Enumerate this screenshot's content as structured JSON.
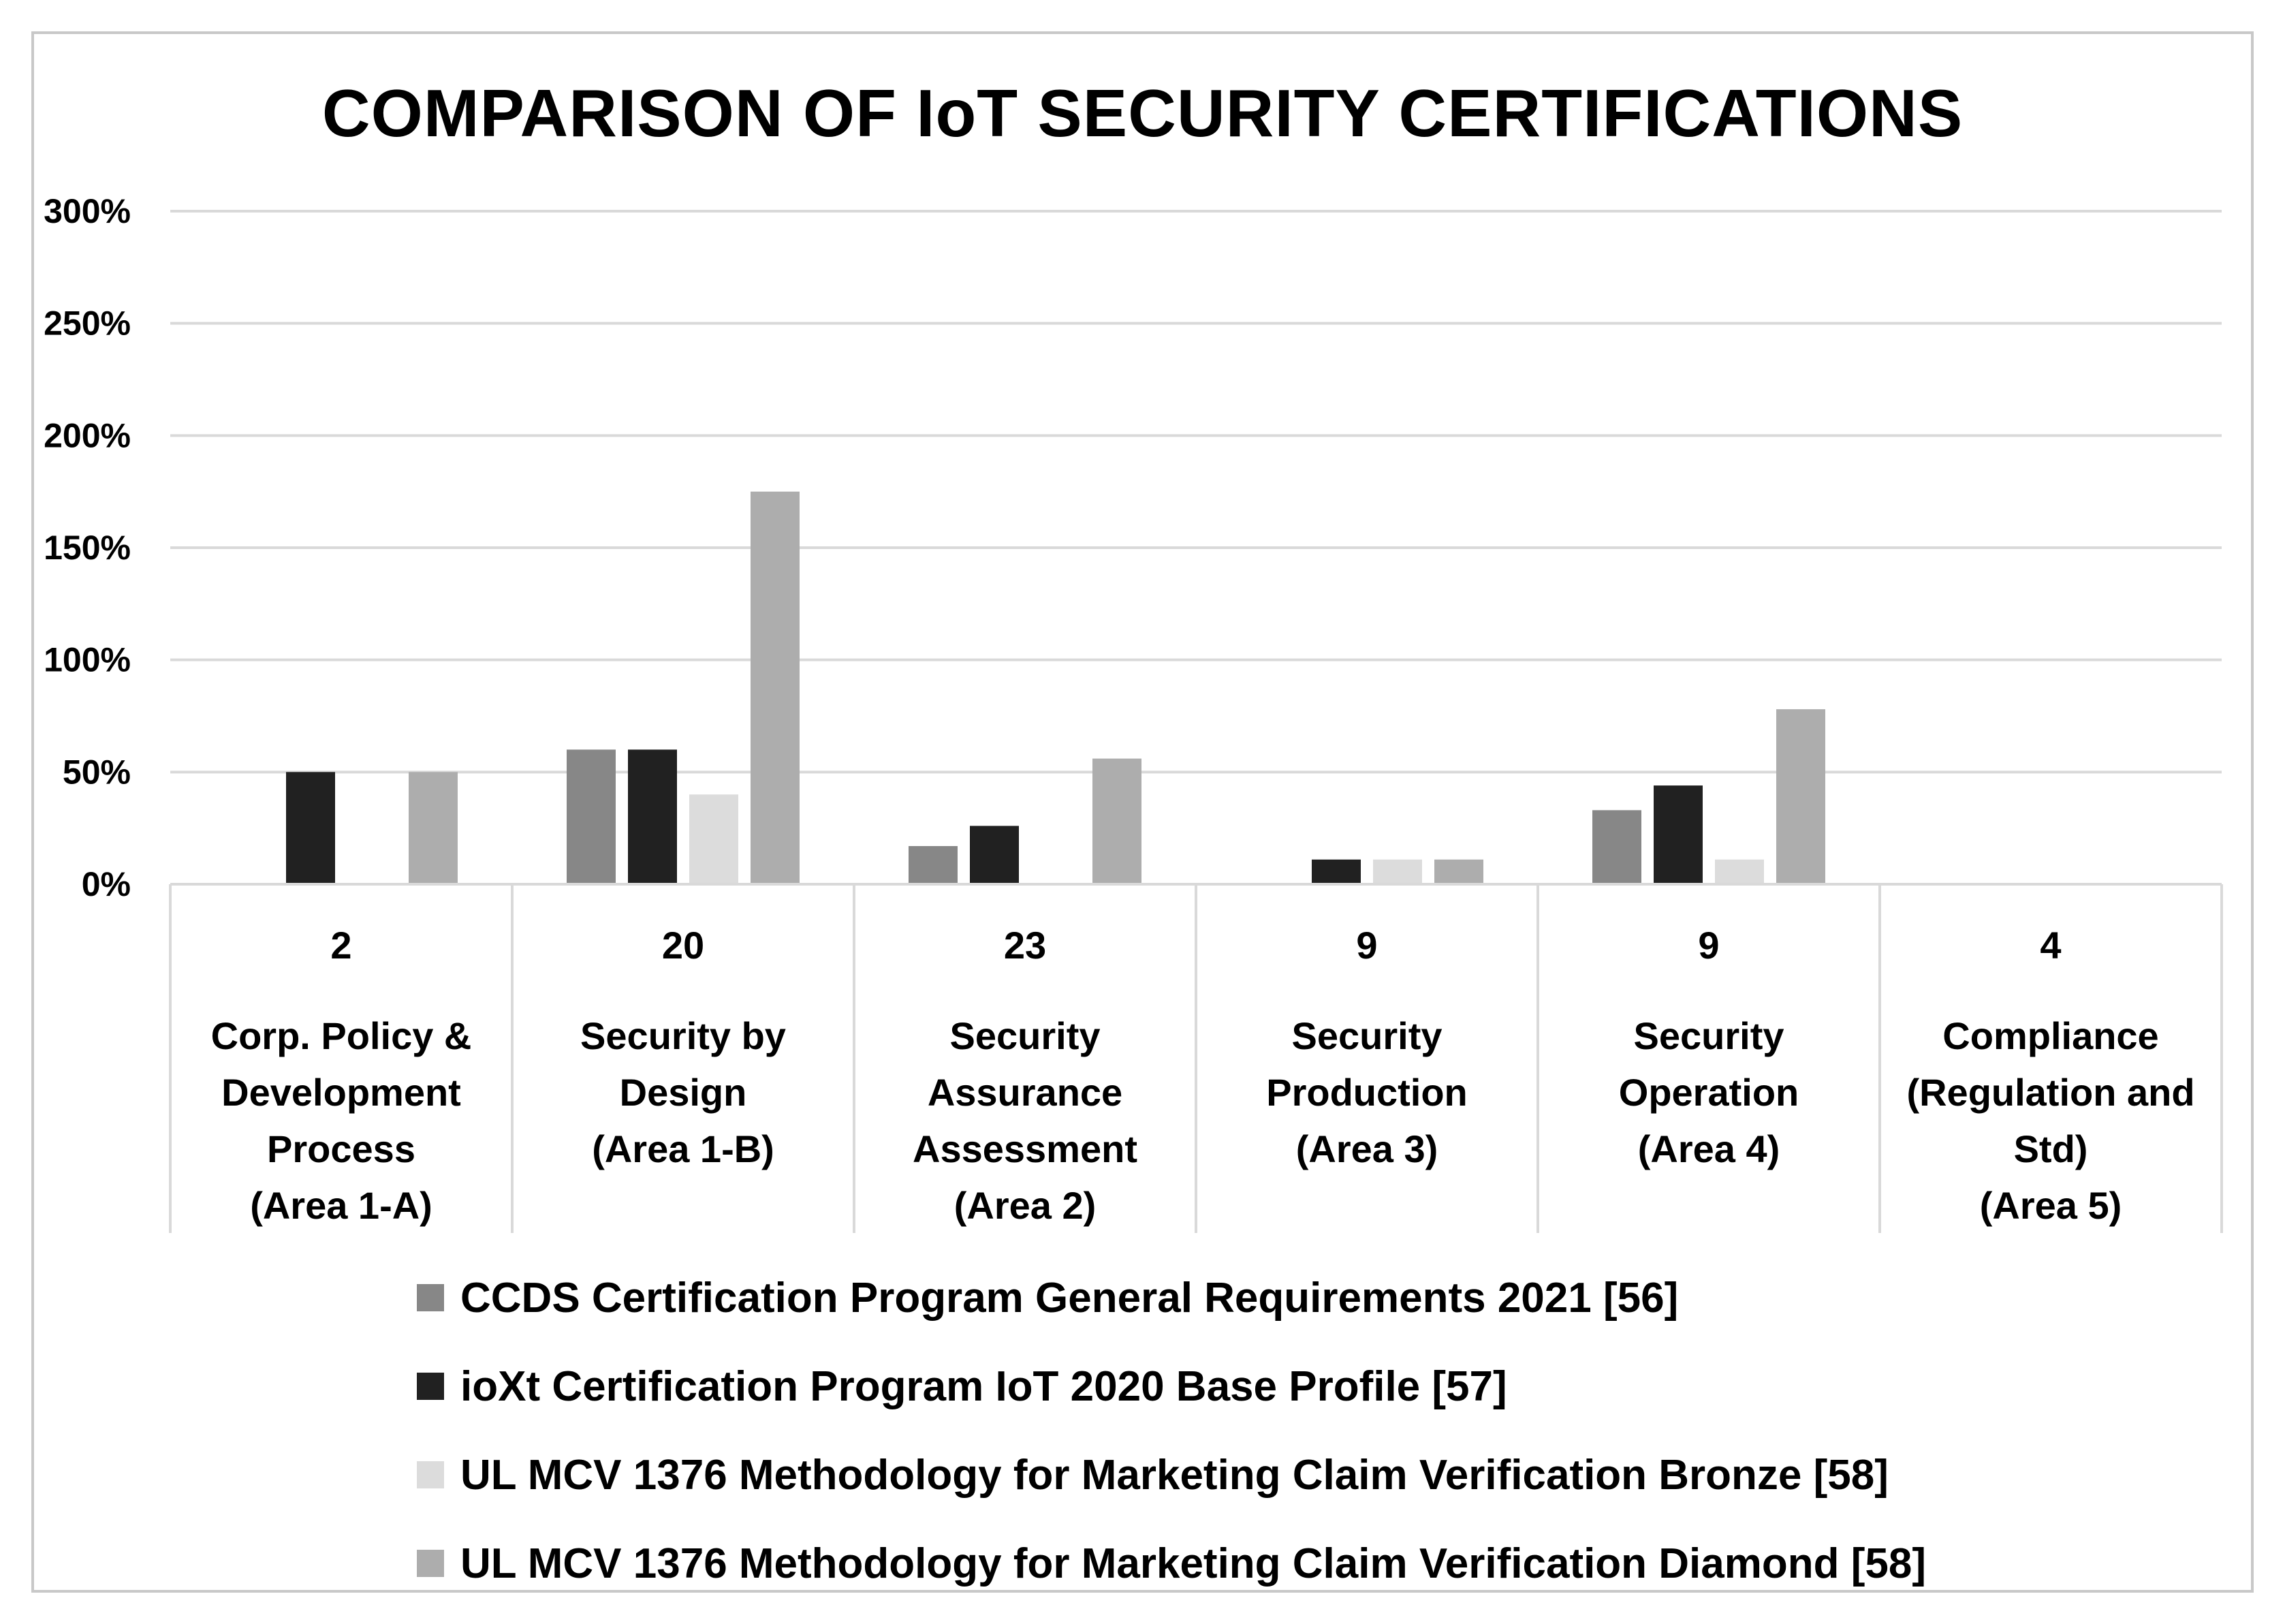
{
  "chart_data": {
    "type": "bar",
    "title": "COMPARISON OF IoT SECURITY CERTIFICATIONS",
    "xlabel": "",
    "ylabel": "",
    "ylim": [
      0,
      3.0
    ],
    "yticks": [
      0,
      0.5,
      1.0,
      1.5,
      2.0,
      2.5,
      3.0
    ],
    "ytick_labels": [
      "0%",
      "50%",
      "100%",
      "150%",
      "200%",
      "250%",
      "300%"
    ],
    "grid": true,
    "legend_position": "bottom",
    "categories": [
      {
        "count": "2",
        "label_lines": [
          "Corp. Policy &",
          "Development",
          "Process",
          "(Area 1-A)"
        ]
      },
      {
        "count": "20",
        "label_lines": [
          "Security by",
          "Design",
          "(Area 1-B)"
        ]
      },
      {
        "count": "23",
        "label_lines": [
          "Security",
          "Assurance",
          "Assessment",
          "(Area 2)"
        ]
      },
      {
        "count": "9",
        "label_lines": [
          "Security",
          "Production",
          "(Area 3)"
        ]
      },
      {
        "count": "9",
        "label_lines": [
          "Security",
          "Operation",
          "(Area 4)"
        ]
      },
      {
        "count": "4",
        "label_lines": [
          "Compliance",
          "(Regulation and",
          "Std)",
          "(Area 5)"
        ]
      }
    ],
    "series": [
      {
        "name": "CCDS Certification Program General Requirements 2021 [56]",
        "color": "#878787",
        "values": [
          0,
          0.6,
          0.17,
          0,
          0.33,
          0
        ]
      },
      {
        "name": "ioXt Certification Program IoT 2020 Base Profile [57]",
        "color": "#212121",
        "values": [
          0.5,
          0.6,
          0.26,
          0.11,
          0.44,
          0
        ]
      },
      {
        "name": "UL MCV 1376 Methodology for Marketing Claim Verification Bronze [58]",
        "color": "#dcdcdc",
        "values": [
          0,
          0.4,
          0,
          0.11,
          0.11,
          0
        ]
      },
      {
        "name": "UL MCV 1376 Methodology for Marketing Claim Verification Diamond [58]",
        "color": "#adadad",
        "values": [
          0.5,
          1.75,
          0.56,
          0.11,
          0.78,
          0
        ]
      }
    ]
  }
}
